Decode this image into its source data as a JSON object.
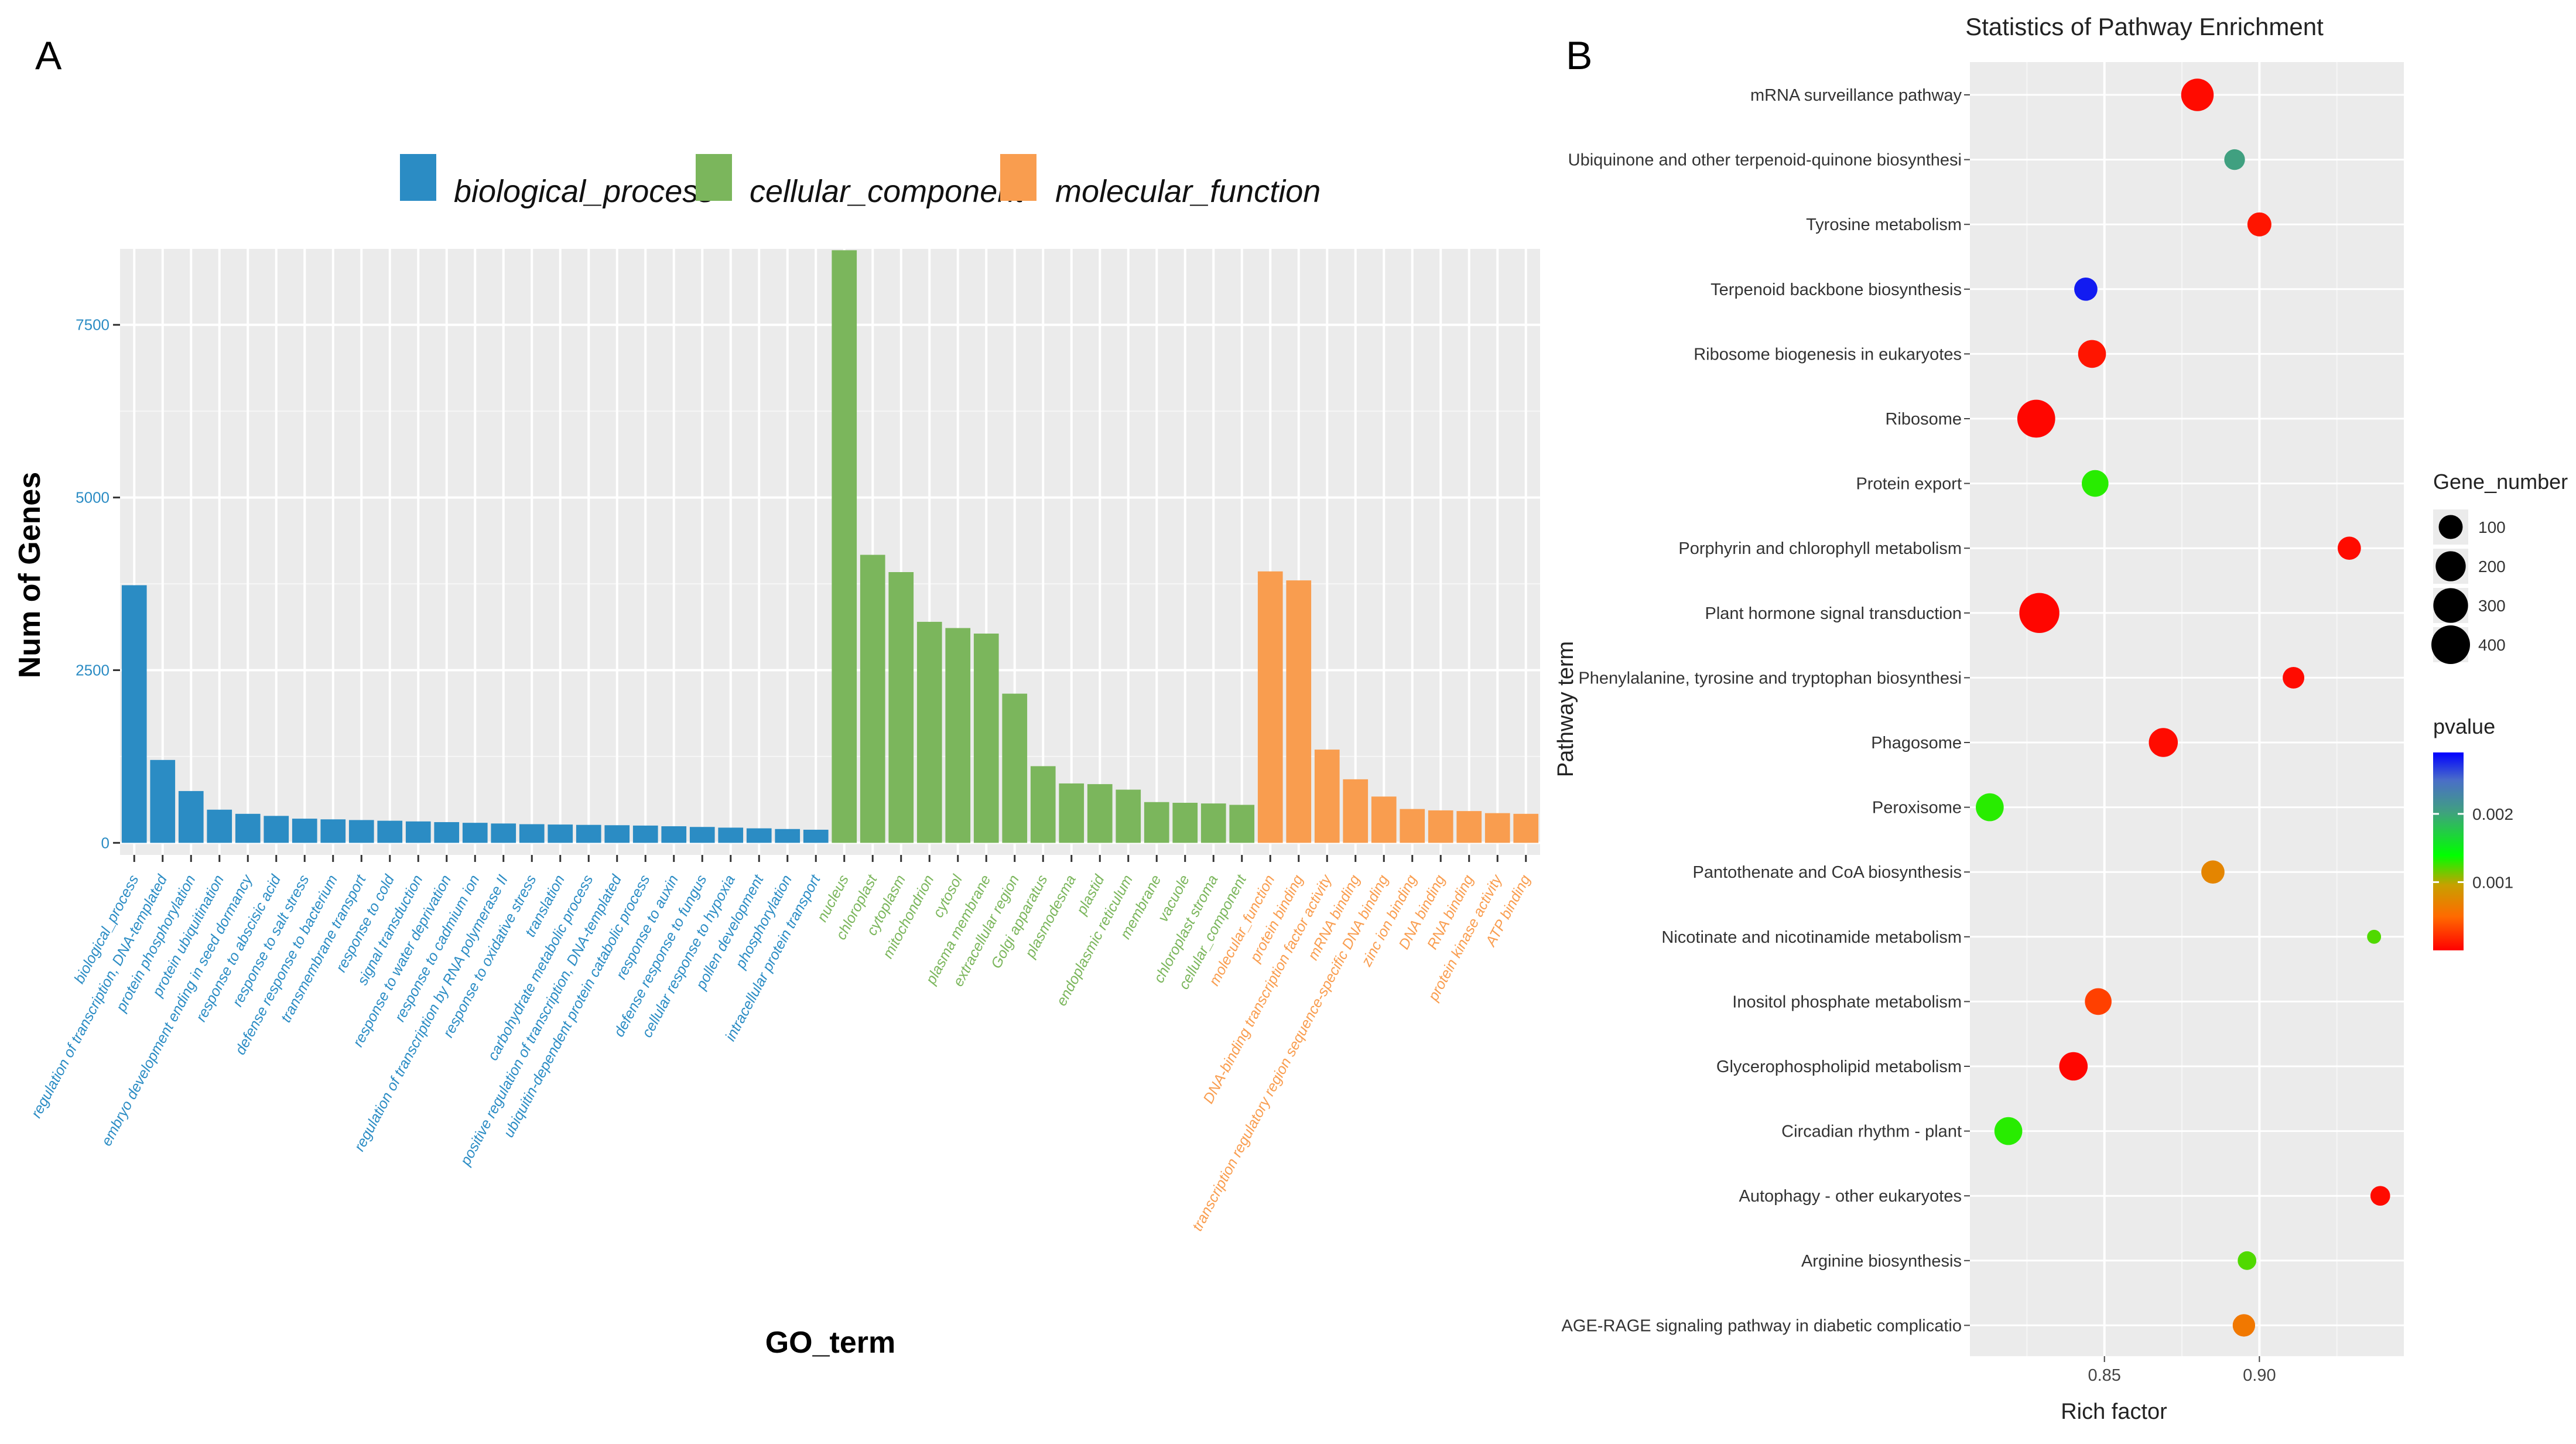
{
  "panel_a_letter": "A",
  "panel_b_letter": "B",
  "chart_data": [
    {
      "type": "bar",
      "title": "",
      "xlabel": "GO_term",
      "ylabel": "Num of Genes",
      "ylim": [
        0,
        8600
      ],
      "yticks": [
        0,
        2500,
        5000,
        7500
      ],
      "legend": {
        "placement": "top",
        "entries": [
          {
            "name": "biological_process",
            "color": "#2b8cc4"
          },
          {
            "name": "cellular_component",
            "color": "#7bb65c"
          },
          {
            "name": "molecular_function",
            "color": "#f99d4f"
          }
        ]
      },
      "categories": [
        "biological_process",
        "regulation of transcription, DNA-templated",
        "protein phosphorylation",
        "protein ubiquitination",
        "embryo development ending in seed dormancy",
        "response to abscisic acid",
        "response to salt stress",
        "defense response to bacterium",
        "transmembrane transport",
        "response to cold",
        "signal transduction",
        "response to water deprivation",
        "response to cadmium ion",
        "regulation of transcription by RNA polymerase II",
        "response to oxidative stress",
        "translation",
        "carbohydrate metabolic process",
        "positive regulation of transcription, DNA-templated",
        "ubiquitin-dependent protein catabolic process",
        "response to auxin",
        "defense response to fungus",
        "cellular response to hypoxia",
        "pollen development",
        "phosphorylation",
        "intracellular protein transport",
        "nucleus",
        "chloroplast",
        "cytoplasm",
        "mitochondrion",
        "cytosol",
        "plasma membrane",
        "extracellular region",
        "Golgi apparatus",
        "plasmodesma",
        "plastid",
        "endoplasmic reticulum",
        "membrane",
        "vacuole",
        "chloroplast stroma",
        "cellular_component",
        "molecular_function",
        "protein binding",
        "DNA-binding transcription factor activity",
        "mRNA binding",
        "transcription regulatory region sequence-specific DNA binding",
        "zinc ion binding",
        "DNA binding",
        "RNA binding",
        "protein kinase activity",
        "ATP binding"
      ],
      "groups": [
        "biological_process",
        "biological_process",
        "biological_process",
        "biological_process",
        "biological_process",
        "biological_process",
        "biological_process",
        "biological_process",
        "biological_process",
        "biological_process",
        "biological_process",
        "biological_process",
        "biological_process",
        "biological_process",
        "biological_process",
        "biological_process",
        "biological_process",
        "biological_process",
        "biological_process",
        "biological_process",
        "biological_process",
        "biological_process",
        "biological_process",
        "biological_process",
        "biological_process",
        "cellular_component",
        "cellular_component",
        "cellular_component",
        "cellular_component",
        "cellular_component",
        "cellular_component",
        "cellular_component",
        "cellular_component",
        "cellular_component",
        "cellular_component",
        "cellular_component",
        "cellular_component",
        "cellular_component",
        "cellular_component",
        "cellular_component",
        "molecular_function",
        "molecular_function",
        "molecular_function",
        "molecular_function",
        "molecular_function",
        "molecular_function",
        "molecular_function",
        "molecular_function",
        "molecular_function",
        "molecular_function"
      ],
      "values": [
        3730,
        1200,
        750,
        480,
        420,
        390,
        350,
        340,
        330,
        320,
        310,
        300,
        290,
        280,
        270,
        265,
        260,
        255,
        250,
        240,
        230,
        220,
        210,
        200,
        190,
        8580,
        4170,
        3920,
        3200,
        3110,
        3030,
        2160,
        1110,
        860,
        850,
        770,
        590,
        580,
        570,
        550,
        3930,
        3800,
        1350,
        920,
        670,
        490,
        470,
        460,
        430,
        420
      ]
    },
    {
      "type": "scatter",
      "title": "Statistics of Pathway Enrichment",
      "xlabel": "Rich factor",
      "ylabel": "Pathway term",
      "xlim": [
        0.8066,
        0.9466
      ],
      "xticks": [
        0.85,
        0.9
      ],
      "xticklabels": [
        "0.85",
        "0.90"
      ],
      "size_legend": {
        "title": "Gene_number",
        "values": [
          100,
          200,
          300,
          400
        ],
        "labels": [
          "100",
          "200",
          "300",
          "400"
        ]
      },
      "color_legend": {
        "title": "pvalue",
        "ticks": [
          0.001,
          0.002
        ],
        "tick_labels": [
          "0.001",
          "0.002"
        ],
        "range": [
          0,
          0.0029
        ]
      },
      "pathways": [
        "mRNA surveillance pathway",
        "Ubiquinone and other terpenoid-quinone biosynthesi",
        "Tyrosine metabolism",
        "Terpenoid backbone biosynthesis",
        "Ribosome biogenesis in eukaryotes",
        "Ribosome",
        "Protein export",
        "Porphyrin and chlorophyll metabolism",
        "Plant hormone signal transduction",
        "Phenylalanine, tyrosine and tryptophan biosynthesi",
        "Phagosome",
        "Peroxisome",
        "Pantothenate and CoA biosynthesis",
        "Nicotinate and nicotinamide metabolism",
        "Inositol phosphate metabolism",
        "Glycerophospholipid metabolism",
        "Circadian rhythm - plant",
        "Autophagy - other eukaryotes",
        "Arginine biosynthesis",
        "AGE-RAGE signaling pathway in diabetic complicatio"
      ],
      "rich_factor": [
        0.88,
        0.892,
        0.9,
        0.844,
        0.846,
        0.828,
        0.847,
        0.929,
        0.829,
        0.911,
        0.869,
        0.813,
        0.885,
        0.937,
        0.848,
        0.84,
        0.819,
        0.939,
        0.896,
        0.895
      ],
      "gene_number": [
        250,
        60,
        100,
        90,
        160,
        380,
        140,
        90,
        440,
        70,
        180,
        160,
        90,
        10,
        140,
        170,
        160,
        50,
        40,
        80
      ],
      "pvalue": [
        5e-05,
        0.002,
        0.0001,
        0.0028,
        0.0001,
        3e-05,
        0.0013,
        5e-05,
        3e-05,
        5e-05,
        5e-05,
        0.0013,
        0.0007,
        0.0012,
        0.0003,
        3e-05,
        0.0013,
        5e-05,
        0.0012,
        0.0006
      ]
    }
  ]
}
